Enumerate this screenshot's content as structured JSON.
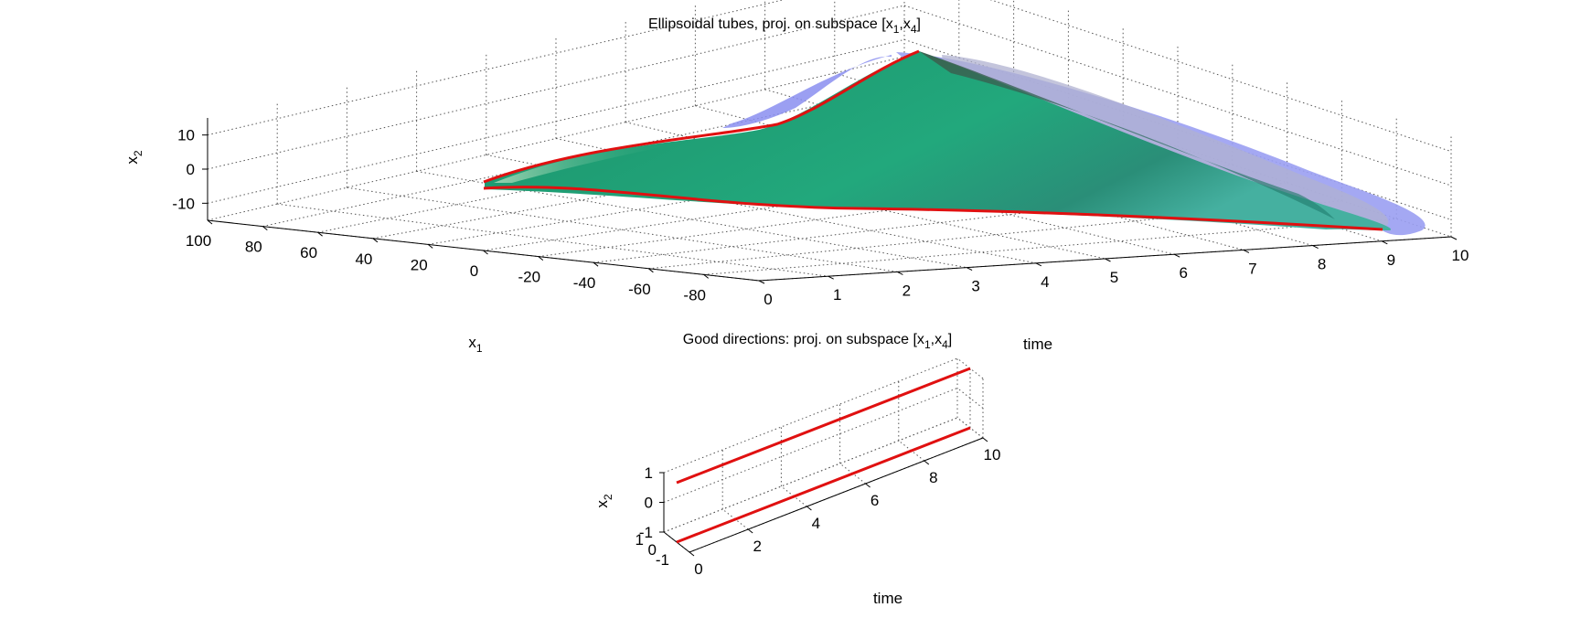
{
  "chart_data": [
    {
      "type": "surface3d",
      "title": {
        "pre": "Ellipsoidal tubes, proj. on subspace [x",
        "sub1": "1",
        "mid": ",x",
        "sub2": "4",
        "post": "]"
      },
      "xlabel": {
        "base": "x",
        "sub": "1"
      },
      "ylabel": {
        "base": "x",
        "sub": "2"
      },
      "tlabel": "time",
      "x1_ticks": [
        "100",
        "80",
        "60",
        "40",
        "20",
        "0",
        "-20",
        "-40",
        "-60",
        "-80"
      ],
      "x2_ticks": [
        "10",
        "0",
        "-10"
      ],
      "time_ticks": [
        "0",
        "1",
        "2",
        "3",
        "4",
        "5",
        "6",
        "7",
        "8",
        "9",
        "10"
      ],
      "x1_range": [
        -100,
        100
      ],
      "x2_range": [
        -15,
        15
      ],
      "time_range": [
        0,
        10
      ],
      "grid": true,
      "colors": {
        "outer_tube": "#9a9ef2",
        "inner_tube": "#27a67a",
        "boundary": "#e01010"
      }
    },
    {
      "type": "line3d",
      "title": {
        "pre": "Good directions: proj. on subspace [x",
        "sub1": "1",
        "mid": ",x",
        "sub2": "4",
        "post": "]"
      },
      "ylabel": {
        "base": "x",
        "sub": "2"
      },
      "tlabel": "time",
      "x2_ticks": [
        "1",
        "0",
        "-1"
      ],
      "x1_ticks": [
        "1",
        "0",
        "-1"
      ],
      "time_ticks": [
        "0",
        "2",
        "4",
        "6",
        "8",
        "10"
      ],
      "time_range": [
        0,
        10
      ],
      "grid": true,
      "series_color": "#e01010",
      "series": [
        {
          "t": [
            0,
            10
          ],
          "x1": [
            0,
            0
          ],
          "x2": [
            1,
            1
          ]
        },
        {
          "t": [
            0,
            10
          ],
          "x1": [
            0,
            0
          ],
          "x2": [
            -1,
            -1
          ]
        }
      ]
    }
  ]
}
